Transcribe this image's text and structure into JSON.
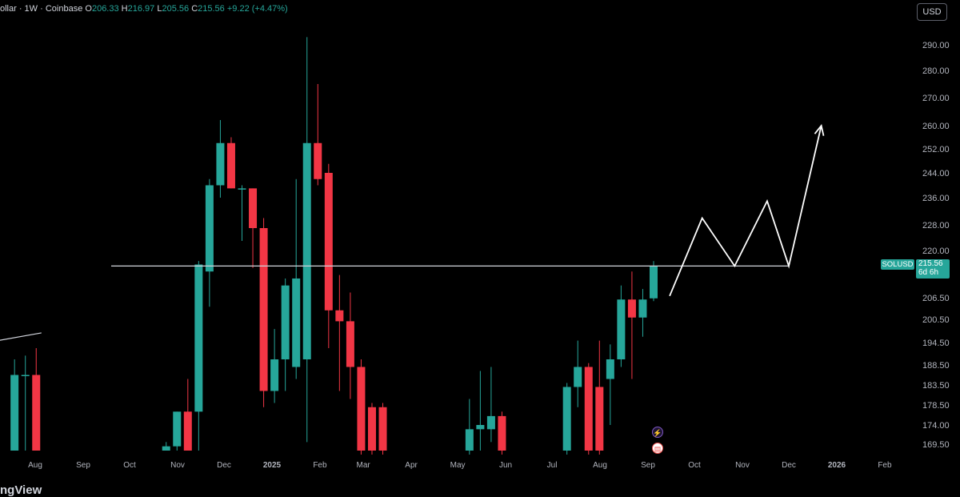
{
  "header": {
    "symbol_title": "ollar · 1W · Coinbase",
    "open_label": "O",
    "open_value": "206.33",
    "high_label": "H",
    "high_value": "216.97",
    "low_label": "L",
    "low_value": "205.56",
    "close_label": "C",
    "close_value": "215.56",
    "change_value": "+9.22 (+4.47%)"
  },
  "currency_button": "USD",
  "brand_text": "ngView",
  "price_tag": {
    "symbol": "SOLUSD",
    "price": "215.56",
    "countdown": "6d 6h"
  },
  "colors": {
    "up": "#26a69a",
    "down": "#f23645",
    "background": "#000000",
    "drawing": "#ffffff"
  },
  "icons": [
    "lightning-event-icon",
    "us-flag-event-icon"
  ],
  "chart_data": {
    "type": "candlestick",
    "timeframe": "1W",
    "y_ticks": [
      290.0,
      280.0,
      270.0,
      260.0,
      252.0,
      244.0,
      236.0,
      228.0,
      220.0,
      206.5,
      200.5,
      194.5,
      188.5,
      183.5,
      178.5,
      174.0,
      169.5
    ],
    "y_tick_labels": [
      "290.00",
      "280.00",
      "270.00",
      "260.00",
      "252.00",
      "244.00",
      "236.00",
      "228.00",
      "220.00",
      "206.50",
      "200.50",
      "194.50",
      "188.50",
      "183.50",
      "178.50",
      "174.00",
      "169.50"
    ],
    "x_labels": [
      {
        "label": "Aug",
        "date": "2024-08-01"
      },
      {
        "label": "Sep",
        "date": "2024-09-01"
      },
      {
        "label": "Oct",
        "date": "2024-10-01"
      },
      {
        "label": "Nov",
        "date": "2024-11-01"
      },
      {
        "label": "Dec",
        "date": "2024-12-01"
      },
      {
        "label": "2025",
        "date": "2025-01-01"
      },
      {
        "label": "Feb",
        "date": "2025-02-01"
      },
      {
        "label": "Mar",
        "date": "2025-03-01"
      },
      {
        "label": "Apr",
        "date": "2025-04-01"
      },
      {
        "label": "May",
        "date": "2025-05-01"
      },
      {
        "label": "Jun",
        "date": "2025-06-01"
      },
      {
        "label": "Jul",
        "date": "2025-07-01"
      },
      {
        "label": "Aug",
        "date": "2025-08-01"
      },
      {
        "label": "Sep",
        "date": "2025-09-01"
      },
      {
        "label": "Oct",
        "date": "2025-10-01"
      },
      {
        "label": "Nov",
        "date": "2025-11-01"
      },
      {
        "label": "Dec",
        "date": "2025-12-01"
      },
      {
        "label": "2026",
        "date": "2026-01-01"
      },
      {
        "label": "Feb",
        "date": "2026-02-01"
      }
    ],
    "candles": [
      {
        "date": "2024-07-15",
        "o": 168,
        "h": 190,
        "l": 168,
        "c": 186
      },
      {
        "date": "2024-07-22",
        "o": 186,
        "h": 191,
        "l": 168,
        "c": 186
      },
      {
        "date": "2024-07-29",
        "o": 186,
        "h": 193,
        "l": 168,
        "c": 168
      },
      {
        "date": "2024-10-21",
        "o": 168,
        "h": 170,
        "l": 168,
        "c": 169
      },
      {
        "date": "2024-10-28",
        "o": 169,
        "h": 177,
        "l": 168,
        "c": 177
      },
      {
        "date": "2024-11-04",
        "o": 177,
        "h": 185,
        "l": 168,
        "c": 168
      },
      {
        "date": "2024-11-11",
        "o": 177,
        "h": 217,
        "l": 168,
        "c": 216
      },
      {
        "date": "2024-11-18",
        "o": 214,
        "h": 242,
        "l": 204,
        "c": 240
      },
      {
        "date": "2024-11-25",
        "o": 240,
        "h": 262,
        "l": 236,
        "c": 254
      },
      {
        "date": "2024-12-02",
        "o": 254,
        "h": 256,
        "l": 239,
        "c": 239
      },
      {
        "date": "2024-12-09",
        "o": 239,
        "h": 240,
        "l": 223,
        "c": 239
      },
      {
        "date": "2024-12-16",
        "o": 239,
        "h": 239,
        "l": 215,
        "c": 227
      },
      {
        "date": "2024-12-23",
        "o": 227,
        "h": 230,
        "l": 178,
        "c": 182
      },
      {
        "date": "2024-12-30",
        "o": 182,
        "h": 198,
        "l": 179,
        "c": 190
      },
      {
        "date": "2025-01-06",
        "o": 190,
        "h": 212,
        "l": 182,
        "c": 210
      },
      {
        "date": "2025-01-13",
        "o": 188,
        "h": 242,
        "l": 185,
        "c": 212
      },
      {
        "date": "2025-01-20",
        "o": 190,
        "h": 293,
        "l": 170,
        "c": 254
      },
      {
        "date": "2025-01-27",
        "o": 254,
        "h": 275,
        "l": 240,
        "c": 242
      },
      {
        "date": "2025-02-03",
        "o": 244,
        "h": 247,
        "l": 193,
        "c": 203
      },
      {
        "date": "2025-02-10",
        "o": 203,
        "h": 213,
        "l": 182,
        "c": 200
      },
      {
        "date": "2025-02-17",
        "o": 200,
        "h": 208,
        "l": 180,
        "c": 188
      },
      {
        "date": "2025-02-24",
        "o": 188,
        "h": 190,
        "l": 166,
        "c": 168
      },
      {
        "date": "2025-03-03",
        "o": 178,
        "h": 179,
        "l": 166,
        "c": 168
      },
      {
        "date": "2025-03-10",
        "o": 178,
        "h": 179,
        "l": 166,
        "c": 168
      },
      {
        "date": "2025-05-05",
        "o": 168,
        "h": 180,
        "l": 166,
        "c": 173
      },
      {
        "date": "2025-05-12",
        "o": 173,
        "h": 187,
        "l": 168,
        "c": 174
      },
      {
        "date": "2025-05-19",
        "o": 173,
        "h": 188,
        "l": 170,
        "c": 176
      },
      {
        "date": "2025-05-26",
        "o": 176,
        "h": 177,
        "l": 166,
        "c": 168
      },
      {
        "date": "2025-07-07",
        "o": 168,
        "h": 184,
        "l": 166,
        "c": 183
      },
      {
        "date": "2025-07-14",
        "o": 183,
        "h": 195,
        "l": 178,
        "c": 188
      },
      {
        "date": "2025-07-21",
        "o": 188,
        "h": 189,
        "l": 166,
        "c": 168
      },
      {
        "date": "2025-07-28",
        "o": 183,
        "h": 195,
        "l": 166,
        "c": 168
      },
      {
        "date": "2025-08-04",
        "o": 185,
        "h": 194,
        "l": 174,
        "c": 190
      },
      {
        "date": "2025-08-11",
        "o": 190,
        "h": 210,
        "l": 188,
        "c": 206
      },
      {
        "date": "2025-08-18",
        "o": 206,
        "h": 214,
        "l": 185,
        "c": 201
      },
      {
        "date": "2025-08-25",
        "o": 201,
        "h": 209,
        "l": 196,
        "c": 206
      },
      {
        "date": "2025-09-01",
        "o": 206.33,
        "h": 216.97,
        "l": 205.56,
        "c": 215.56
      }
    ],
    "horizontal_line": 215.56,
    "projection_path": [
      {
        "date": "2025-09-15",
        "v": 207
      },
      {
        "date": "2025-10-06",
        "v": 230
      },
      {
        "date": "2025-10-27",
        "v": 215.56
      },
      {
        "date": "2025-11-17",
        "v": 235
      },
      {
        "date": "2025-12-01",
        "v": 215.56
      },
      {
        "date": "2025-12-22",
        "v": 260
      }
    ],
    "trendline": [
      {
        "date": "2024-06-24",
        "v": 194
      },
      {
        "date": "2024-08-05",
        "v": 197
      }
    ]
  }
}
